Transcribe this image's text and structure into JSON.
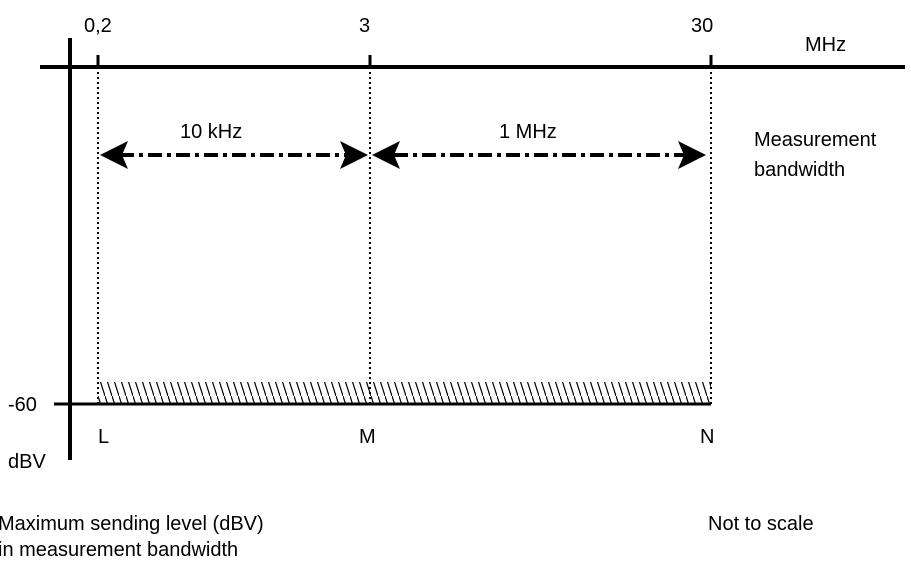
{
  "diagram": {
    "freq_ticks": [
      "0,2",
      "3",
      "30"
    ],
    "freq_unit": "MHz",
    "bandwidth_spans": [
      "10 kHz",
      "1 MHz"
    ],
    "bandwidth_label_line1": "Measurement",
    "bandwidth_label_line2": "bandwidth",
    "level_tick": "-60",
    "level_unit": "dBV",
    "points": [
      "L",
      "M",
      "N"
    ],
    "caption_line1": "Maximum sending level (dBV)",
    "caption_line2": "in measurement bandwidth",
    "scale_note": "Not to scale"
  }
}
